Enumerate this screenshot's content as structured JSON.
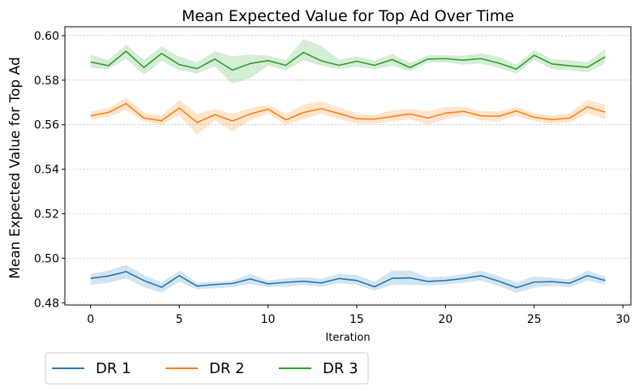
{
  "chart_data": {
    "type": "line",
    "title": "Mean Expected Value for Top Ad Over Time",
    "xlabel": "Iteration",
    "ylabel": "Mean Expected Value for Top Ad",
    "xlim": [
      -1.45,
      30.45
    ],
    "ylim": [
      0.479,
      0.604
    ],
    "x_ticks": [
      0,
      5,
      10,
      15,
      20,
      25,
      30
    ],
    "y_ticks": [
      0.48,
      0.5,
      0.52,
      0.54,
      0.56,
      0.58,
      0.6
    ],
    "x_tick_labels": [
      "0",
      "5",
      "10",
      "15",
      "20",
      "25",
      "30"
    ],
    "y_tick_labels": [
      "0.48",
      "0.50",
      "0.52",
      "0.54",
      "0.56",
      "0.58",
      "0.60"
    ],
    "grid": "horizontal dashed",
    "legend_position": "bottom-left, below plot",
    "x": [
      0,
      1,
      2,
      3,
      4,
      5,
      6,
      7,
      8,
      9,
      10,
      11,
      12,
      13,
      14,
      15,
      16,
      17,
      18,
      19,
      20,
      21,
      22,
      23,
      24,
      25,
      26,
      27,
      28,
      29
    ],
    "series": [
      {
        "name": "DR 1",
        "color": "#1f77b4",
        "values": [
          0.491,
          0.492,
          0.494,
          0.49,
          0.487,
          0.4922,
          0.4875,
          0.4882,
          0.4887,
          0.4907,
          0.4885,
          0.4892,
          0.4897,
          0.4889,
          0.4909,
          0.49,
          0.4872,
          0.491,
          0.4912,
          0.4896,
          0.49,
          0.4909,
          0.4922,
          0.4897,
          0.4868,
          0.4893,
          0.4895,
          0.4888,
          0.4922,
          0.49
        ],
        "lower": [
          0.488,
          0.489,
          0.491,
          0.487,
          0.4845,
          0.4895,
          0.486,
          0.4865,
          0.487,
          0.4885,
          0.487,
          0.4872,
          0.488,
          0.4872,
          0.4888,
          0.488,
          0.4855,
          0.488,
          0.488,
          0.4878,
          0.4882,
          0.489,
          0.49,
          0.4875,
          0.4845,
          0.4868,
          0.4875,
          0.487,
          0.49,
          0.4882
        ],
        "upper": [
          0.493,
          0.4945,
          0.497,
          0.4925,
          0.489,
          0.4945,
          0.489,
          0.4895,
          0.49,
          0.493,
          0.49,
          0.491,
          0.4915,
          0.4908,
          0.493,
          0.4925,
          0.4895,
          0.4945,
          0.4945,
          0.4915,
          0.4918,
          0.4928,
          0.4945,
          0.492,
          0.4892,
          0.4918,
          0.4913,
          0.4905,
          0.4945,
          0.4918
        ]
      },
      {
        "name": "DR 2",
        "color": "#ff7f0e",
        "values": [
          0.564,
          0.5655,
          0.5695,
          0.563,
          0.5618,
          0.5675,
          0.561,
          0.5645,
          0.5617,
          0.5648,
          0.567,
          0.5622,
          0.5655,
          0.5672,
          0.565,
          0.5627,
          0.5625,
          0.5637,
          0.5648,
          0.563,
          0.5652,
          0.566,
          0.564,
          0.5638,
          0.5662,
          0.5633,
          0.5623,
          0.563,
          0.568,
          0.5657
        ],
        "lower": [
          0.562,
          0.5635,
          0.5665,
          0.5615,
          0.56,
          0.564,
          0.5555,
          0.562,
          0.557,
          0.562,
          0.565,
          0.56,
          0.5625,
          0.565,
          0.5625,
          0.5605,
          0.5605,
          0.5615,
          0.5625,
          0.56,
          0.5625,
          0.564,
          0.562,
          0.5615,
          0.564,
          0.5615,
          0.5605,
          0.561,
          0.565,
          0.5625
        ],
        "upper": [
          0.566,
          0.5675,
          0.572,
          0.5655,
          0.564,
          0.5712,
          0.565,
          0.567,
          0.565,
          0.5675,
          0.569,
          0.565,
          0.569,
          0.5705,
          0.568,
          0.565,
          0.5645,
          0.5665,
          0.5672,
          0.566,
          0.568,
          0.568,
          0.5662,
          0.566,
          0.5682,
          0.5652,
          0.5642,
          0.5652,
          0.5712,
          0.569
        ]
      },
      {
        "name": "DR 3",
        "color": "#2ca02c",
        "values": [
          0.5882,
          0.5865,
          0.593,
          0.5857,
          0.592,
          0.587,
          0.5852,
          0.5895,
          0.5845,
          0.5875,
          0.5888,
          0.5867,
          0.5925,
          0.5887,
          0.5867,
          0.5885,
          0.5867,
          0.5893,
          0.5857,
          0.5895,
          0.5897,
          0.589,
          0.5897,
          0.5877,
          0.585,
          0.5912,
          0.5873,
          0.5865,
          0.5858,
          0.5905
        ],
        "lower": [
          0.5855,
          0.585,
          0.5895,
          0.5825,
          0.5885,
          0.5845,
          0.583,
          0.5862,
          0.5785,
          0.581,
          0.5865,
          0.5845,
          0.589,
          0.5865,
          0.585,
          0.586,
          0.585,
          0.5865,
          0.584,
          0.588,
          0.588,
          0.587,
          0.5875,
          0.5855,
          0.583,
          0.589,
          0.585,
          0.5845,
          0.5835,
          0.5875
        ],
        "upper": [
          0.5915,
          0.589,
          0.596,
          0.589,
          0.5952,
          0.5905,
          0.588,
          0.593,
          0.5908,
          0.5915,
          0.591,
          0.589,
          0.5985,
          0.5955,
          0.5892,
          0.5908,
          0.5888,
          0.5918,
          0.5878,
          0.5912,
          0.5912,
          0.591,
          0.592,
          0.5905,
          0.587,
          0.5935,
          0.5895,
          0.589,
          0.588,
          0.594
        ]
      }
    ]
  }
}
